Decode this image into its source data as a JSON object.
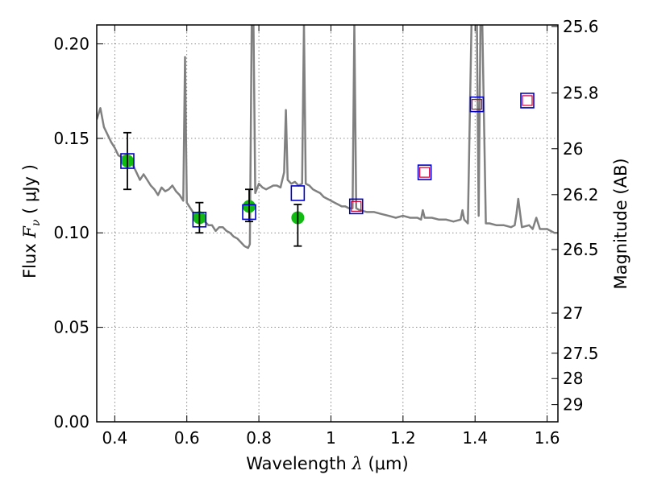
{
  "chart_data": {
    "type": "scatter",
    "xlabel": "Wavelength  λ (μm)",
    "ylabel": "Flux  F_ν  ( μJy )",
    "ylabel_parts": {
      "prefix": "Flux  ",
      "symbol": "F",
      "subscript": "ν",
      "suffix": "  ( μJy )"
    },
    "xlabel_parts": {
      "prefix": "Wavelength  ",
      "symbol": "λ",
      "suffix": " (μm)"
    },
    "y2label": "Magnitude (AB)",
    "xlim": [
      0.35,
      1.63
    ],
    "ylim": [
      0.0,
      0.21
    ],
    "x_ticks": [
      0.4,
      0.6,
      0.8,
      1.0,
      1.2,
      1.4,
      1.6
    ],
    "x_tick_labels": [
      "0.4",
      "0.6",
      "0.8",
      "1",
      "1.2",
      "1.4",
      "1.6"
    ],
    "y_ticks": [
      0.0,
      0.05,
      0.1,
      0.15,
      0.2
    ],
    "y_tick_labels": [
      "0.00",
      "0.05",
      "0.10",
      "0.15",
      "0.20"
    ],
    "y2_ticks": [
      {
        "label": "25.6",
        "flux": 0.2092
      },
      {
        "label": "25.8",
        "flux": 0.174
      },
      {
        "label": "26",
        "flux": 0.1445
      },
      {
        "label": "26.2",
        "flux": 0.1202
      },
      {
        "label": "26.5",
        "flux": 0.0912
      },
      {
        "label": "27",
        "flux": 0.0575
      },
      {
        "label": "27.5",
        "flux": 0.0363
      },
      {
        "label": "28",
        "flux": 0.0229
      },
      {
        "label": "29",
        "flux": 0.0091
      }
    ],
    "grid": true,
    "colors": {
      "sed": "#808080",
      "model_box": "#0000cc",
      "inner_box": "#cc0033",
      "observed": "#11bb11",
      "errorbar": "#000000"
    },
    "series": [
      {
        "role": "sed_model_spectrum",
        "x": [
          0.35,
          0.36,
          0.37,
          0.38,
          0.39,
          0.4,
          0.41,
          0.42,
          0.43,
          0.44,
          0.45,
          0.46,
          0.47,
          0.48,
          0.49,
          0.5,
          0.51,
          0.52,
          0.53,
          0.54,
          0.55,
          0.56,
          0.57,
          0.58,
          0.59,
          0.595,
          0.6,
          0.61,
          0.62,
          0.63,
          0.64,
          0.65,
          0.66,
          0.67,
          0.68,
          0.69,
          0.7,
          0.71,
          0.72,
          0.73,
          0.74,
          0.75,
          0.76,
          0.77,
          0.775,
          0.78,
          0.785,
          0.79,
          0.8,
          0.81,
          0.82,
          0.83,
          0.84,
          0.85,
          0.86,
          0.87,
          0.875,
          0.88,
          0.89,
          0.9,
          0.91,
          0.92,
          0.925,
          0.93,
          0.94,
          0.95,
          0.96,
          0.97,
          0.98,
          0.99,
          1.0,
          1.01,
          1.02,
          1.03,
          1.04,
          1.05,
          1.06,
          1.065,
          1.07,
          1.08,
          1.1,
          1.12,
          1.14,
          1.16,
          1.18,
          1.2,
          1.22,
          1.24,
          1.25,
          1.255,
          1.26,
          1.28,
          1.3,
          1.32,
          1.34,
          1.36,
          1.365,
          1.37,
          1.38,
          1.39,
          1.4,
          1.405,
          1.41,
          1.415,
          1.42,
          1.43,
          1.44,
          1.46,
          1.48,
          1.5,
          1.51,
          1.515,
          1.52,
          1.53,
          1.55,
          1.56,
          1.57,
          1.58,
          1.6,
          1.62,
          1.63
        ],
        "y": [
          0.16,
          0.166,
          0.156,
          0.152,
          0.148,
          0.145,
          0.141,
          0.14,
          0.141,
          0.139,
          0.136,
          0.132,
          0.128,
          0.131,
          0.128,
          0.125,
          0.123,
          0.12,
          0.124,
          0.122,
          0.123,
          0.125,
          0.122,
          0.12,
          0.117,
          0.193,
          0.116,
          0.113,
          0.11,
          0.107,
          0.106,
          0.106,
          0.104,
          0.104,
          0.101,
          0.103,
          0.103,
          0.101,
          0.1,
          0.098,
          0.097,
          0.095,
          0.093,
          0.092,
          0.094,
          0.212,
          0.212,
          0.121,
          0.126,
          0.124,
          0.123,
          0.124,
          0.125,
          0.125,
          0.124,
          0.132,
          0.165,
          0.128,
          0.126,
          0.127,
          0.125,
          0.126,
          0.212,
          0.126,
          0.125,
          0.123,
          0.122,
          0.121,
          0.119,
          0.118,
          0.117,
          0.116,
          0.115,
          0.114,
          0.114,
          0.113,
          0.113,
          0.212,
          0.113,
          0.112,
          0.111,
          0.111,
          0.11,
          0.109,
          0.108,
          0.109,
          0.108,
          0.108,
          0.107,
          0.112,
          0.108,
          0.108,
          0.107,
          0.107,
          0.106,
          0.107,
          0.112,
          0.107,
          0.105,
          0.212,
          0.212,
          0.212,
          0.109,
          0.212,
          0.212,
          0.105,
          0.105,
          0.104,
          0.104,
          0.103,
          0.104,
          0.11,
          0.118,
          0.103,
          0.104,
          0.102,
          0.108,
          0.102,
          0.102,
          0.1,
          0.1
        ]
      },
      {
        "role": "model_photometry_box",
        "x": [
          0.435,
          0.635,
          0.773,
          0.908,
          1.07,
          1.26,
          1.405,
          1.545
        ],
        "y": [
          0.138,
          0.107,
          0.111,
          0.121,
          0.114,
          0.132,
          0.168,
          0.17
        ]
      },
      {
        "role": "model_photometry_inner_box",
        "x": [
          1.07,
          1.26,
          1.405,
          1.545
        ],
        "y": [
          0.114,
          0.132,
          0.168,
          0.17
        ]
      },
      {
        "role": "observed_photometry",
        "x": [
          0.435,
          0.635,
          0.773,
          0.908
        ],
        "y": [
          0.138,
          0.108,
          0.114,
          0.108
        ],
        "err_low": [
          0.015,
          0.008,
          0.008,
          0.015
        ],
        "err_high": [
          0.015,
          0.008,
          0.009,
          0.007
        ]
      }
    ]
  }
}
